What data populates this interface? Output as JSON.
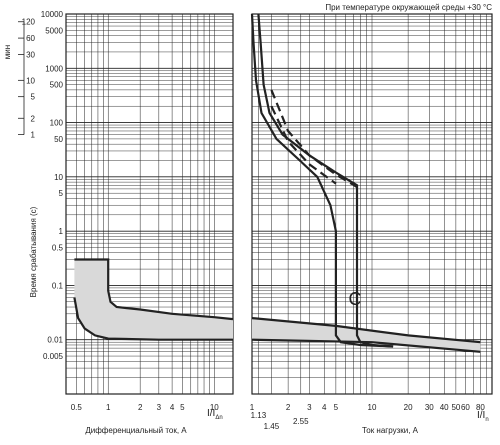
{
  "chart_data": [
    {
      "type": "line",
      "title": "",
      "xlabel": "Дифференциальный ток, А",
      "ylabel": "Время срабатывания (с)",
      "scale": "log-log",
      "grid": true,
      "x_ticks": [
        "0.5",
        "1",
        "2",
        "3",
        "4",
        "5",
        "10"
      ],
      "x_unit_label": "I/I",
      "x_unit_sub": "Δn",
      "y_ticks_seconds": [
        "10000",
        "5000",
        "1000",
        "500",
        "100",
        "50",
        "10",
        "5",
        "1",
        "0.5",
        "0.1",
        "0.01",
        "0.005"
      ],
      "y_ticks_minutes_label": "мин",
      "y_ticks_minutes": [
        "120",
        "60",
        "30",
        "10",
        "5",
        "2",
        "1"
      ],
      "band": {
        "upper": [
          [
            0.48,
            0.3
          ],
          [
            1.0,
            0.3
          ],
          [
            1.0,
            0.08
          ],
          [
            1.05,
            0.05
          ],
          [
            1.2,
            0.04
          ],
          [
            2,
            0.036
          ],
          [
            4,
            0.03
          ],
          [
            10,
            0.026
          ],
          [
            15,
            0.024
          ]
        ],
        "lower": [
          [
            0.48,
            0.06
          ],
          [
            0.52,
            0.025
          ],
          [
            0.6,
            0.016
          ],
          [
            0.75,
            0.012
          ],
          [
            1.0,
            0.0105
          ],
          [
            3,
            0.01
          ],
          [
            15,
            0.01
          ]
        ],
        "fill": "#d9d9d9"
      }
    },
    {
      "type": "line",
      "title": "При температуре окружающей среды +30 °С",
      "xlabel": "Ток нагрузки, А",
      "scale": "log-log",
      "grid": true,
      "x_ticks": [
        "1",
        "1.13",
        "1.45",
        "2",
        "2.55",
        "3",
        "4",
        "5",
        "10",
        "20",
        "30",
        "40",
        "50",
        "60",
        "80"
      ],
      "x_unit_label": "I/I",
      "x_unit_sub": "n",
      "curve_label": "C",
      "series": [
        {
          "style": "solid",
          "values": [
            [
              1.13,
              10000
            ],
            [
              1.18,
              3000
            ],
            [
              1.25,
              500
            ],
            [
              1.4,
              150
            ],
            [
              1.8,
              60
            ],
            [
              3,
              25
            ],
            [
              5,
              12
            ],
            [
              7.5,
              7
            ],
            [
              7.5,
              0.012
            ],
            [
              8,
              0.009
            ],
            [
              10,
              0.008
            ],
            [
              15,
              0.0075
            ]
          ]
        },
        {
          "style": "solid",
          "values": [
            [
              1.0,
              10000
            ],
            [
              1.03,
              3000
            ],
            [
              1.08,
              600
            ],
            [
              1.2,
              150
            ],
            [
              1.6,
              50
            ],
            [
              2.5,
              20
            ],
            [
              3.5,
              10
            ],
            [
              4.5,
              3
            ],
            [
              5,
              1
            ],
            [
              5,
              0.012
            ],
            [
              5.5,
              0.009
            ],
            [
              8,
              0.008
            ],
            [
              15,
              0.0075
            ]
          ]
        },
        {
          "style": "dashed",
          "values": [
            [
              1.45,
              400
            ],
            [
              2,
              70
            ],
            [
              3,
              25
            ],
            [
              5,
              11
            ],
            [
              7.5,
              6.5
            ]
          ]
        },
        {
          "style": "dashed",
          "values": [
            [
              1.45,
              200
            ],
            [
              2,
              45
            ],
            [
              3,
              17
            ],
            [
              5,
              7.5
            ]
          ]
        }
      ],
      "band": {
        "upper": [
          [
            1,
            0.025
          ],
          [
            5,
            0.018
          ],
          [
            20,
            0.012
          ],
          [
            80,
            0.009
          ]
        ],
        "lower": [
          [
            1,
            0.01
          ],
          [
            10,
            0.009
          ],
          [
            80,
            0.006
          ]
        ],
        "fill": "#d9d9d9"
      }
    }
  ]
}
